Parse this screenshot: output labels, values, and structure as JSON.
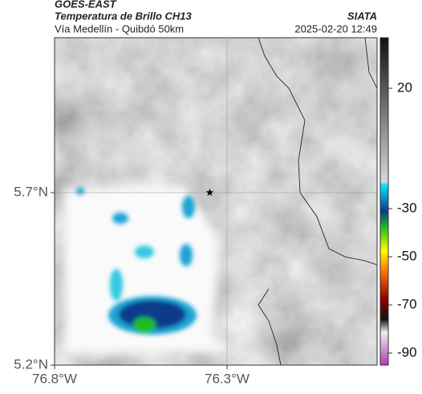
{
  "chart_data": {
    "type": "map",
    "title": "GOES-EAST",
    "subtitle": "Temperatura de Brillo CH13",
    "region": "Vía Medellín - Quibdó 50km",
    "source": "SIATA",
    "timestamp": "2025-02-20 12:49",
    "xlim": [
      -76.8,
      -75.865
    ],
    "ylim": [
      5.2,
      6.149
    ],
    "xticks": [
      {
        "value": -76.8,
        "label": "76.8°W"
      },
      {
        "value": -76.3,
        "label": "76.3°W"
      }
    ],
    "yticks": [
      {
        "value": 5.2,
        "label": "5.2°N"
      },
      {
        "value": 5.7,
        "label": "5.7°N"
      }
    ],
    "grid": true,
    "marker": {
      "lon": -76.35,
      "lat": 5.7
    },
    "colorbar": {
      "clim": [
        -95,
        41
      ],
      "ticks": [
        20,
        -30,
        -50,
        -70,
        -90
      ]
    }
  }
}
